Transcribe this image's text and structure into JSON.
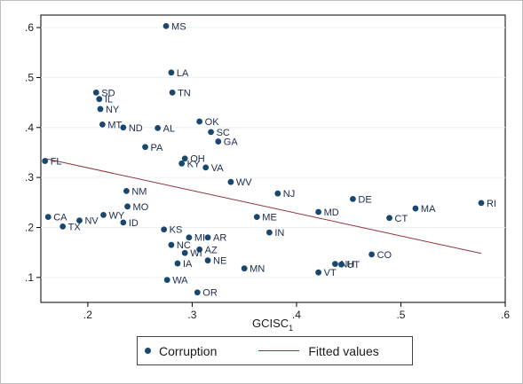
{
  "chart_data": {
    "type": "scatter",
    "xlabel_main": "GCISC",
    "xlabel_sub": "1",
    "ylabel": "",
    "xlim": [
      0.155,
      0.6
    ],
    "ylim": [
      0.05,
      0.625
    ],
    "x_ticks": [
      0.2,
      0.3,
      0.4,
      0.5,
      0.6
    ],
    "x_tick_labels": [
      ".2",
      ".3",
      ".4",
      ".5",
      ".6"
    ],
    "y_ticks": [
      0.1,
      0.2,
      0.3,
      0.4,
      0.5,
      0.6
    ],
    "y_tick_labels": [
      ".1",
      ".2",
      ".3",
      ".4",
      ".5",
      ".6"
    ],
    "grid": "horizontal",
    "legend_position": "bottom",
    "legend": [
      "Corruption",
      "Fitted values"
    ],
    "colors": {
      "points": "#1a476f",
      "fit_line": "#90353b",
      "grid": "#eaf2f3"
    },
    "series": [
      {
        "name": "Corruption",
        "kind": "scatter",
        "points": [
          {
            "label": "MS",
            "x": 0.275,
            "y": 0.603
          },
          {
            "label": "LA",
            "x": 0.28,
            "y": 0.51
          },
          {
            "label": "SD",
            "x": 0.208,
            "y": 0.47
          },
          {
            "label": "TN",
            "x": 0.281,
            "y": 0.47
          },
          {
            "label": "IL",
            "x": 0.211,
            "y": 0.457
          },
          {
            "label": "NY",
            "x": 0.212,
            "y": 0.437
          },
          {
            "label": "OK",
            "x": 0.307,
            "y": 0.412
          },
          {
            "label": "MT",
            "x": 0.214,
            "y": 0.406
          },
          {
            "label": "ND",
            "x": 0.234,
            "y": 0.4
          },
          {
            "label": "AL",
            "x": 0.267,
            "y": 0.399
          },
          {
            "label": "SC",
            "x": 0.318,
            "y": 0.391
          },
          {
            "label": "GA",
            "x": 0.325,
            "y": 0.372
          },
          {
            "label": "PA",
            "x": 0.255,
            "y": 0.361
          },
          {
            "label": "OH",
            "x": 0.293,
            "y": 0.338
          },
          {
            "label": "FL",
            "x": 0.159,
            "y": 0.333
          },
          {
            "label": "KY",
            "x": 0.29,
            "y": 0.328
          },
          {
            "label": "VA",
            "x": 0.313,
            "y": 0.32
          },
          {
            "label": "WV",
            "x": 0.337,
            "y": 0.291
          },
          {
            "label": "NM",
            "x": 0.237,
            "y": 0.273
          },
          {
            "label": "NJ",
            "x": 0.382,
            "y": 0.268
          },
          {
            "label": "DE",
            "x": 0.454,
            "y": 0.257
          },
          {
            "label": "RI",
            "x": 0.577,
            "y": 0.249
          },
          {
            "label": "MO",
            "x": 0.238,
            "y": 0.242
          },
          {
            "label": "MA",
            "x": 0.514,
            "y": 0.238
          },
          {
            "label": "MD",
            "x": 0.421,
            "y": 0.231
          },
          {
            "label": "WY",
            "x": 0.215,
            "y": 0.225
          },
          {
            "label": "CA",
            "x": 0.162,
            "y": 0.221
          },
          {
            "label": "ME",
            "x": 0.362,
            "y": 0.221
          },
          {
            "label": "CT",
            "x": 0.489,
            "y": 0.219
          },
          {
            "label": "NV",
            "x": 0.192,
            "y": 0.214
          },
          {
            "label": "ID",
            "x": 0.234,
            "y": 0.21
          },
          {
            "label": "TX",
            "x": 0.176,
            "y": 0.202
          },
          {
            "label": "KS",
            "x": 0.273,
            "y": 0.196
          },
          {
            "label": "IN",
            "x": 0.374,
            "y": 0.19
          },
          {
            "label": "MI",
            "x": 0.297,
            "y": 0.18
          },
          {
            "label": "AR",
            "x": 0.315,
            "y": 0.18
          },
          {
            "label": "NC",
            "x": 0.28,
            "y": 0.165
          },
          {
            "label": "AZ",
            "x": 0.307,
            "y": 0.156
          },
          {
            "label": "WI",
            "x": 0.293,
            "y": 0.149
          },
          {
            "label": "CO",
            "x": 0.472,
            "y": 0.146
          },
          {
            "label": "NE",
            "x": 0.315,
            "y": 0.134
          },
          {
            "label": "IA",
            "x": 0.286,
            "y": 0.128
          },
          {
            "label": "NH",
            "x": 0.437,
            "y": 0.127
          },
          {
            "label": "UT",
            "x": 0.443,
            "y": 0.126
          },
          {
            "label": "MN",
            "x": 0.35,
            "y": 0.118
          },
          {
            "label": "VT",
            "x": 0.421,
            "y": 0.11
          },
          {
            "label": "WA",
            "x": 0.276,
            "y": 0.095
          },
          {
            "label": "OR",
            "x": 0.305,
            "y": 0.07
          }
        ]
      },
      {
        "name": "Fitted values",
        "kind": "line",
        "points": [
          {
            "x": 0.159,
            "y": 0.338
          },
          {
            "x": 0.577,
            "y": 0.148
          }
        ]
      }
    ]
  }
}
